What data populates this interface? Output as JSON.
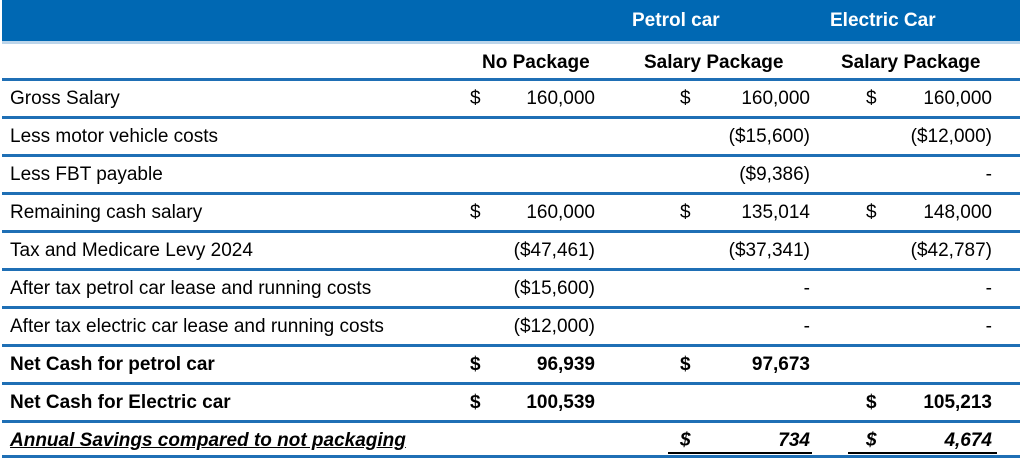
{
  "header": {
    "petrol": "Petrol car",
    "electric": "Electric Car"
  },
  "subheader": {
    "col1": "No Package",
    "col2": "Salary Package",
    "col3": "Salary Package"
  },
  "colors": {
    "header_bg": "#0068b3",
    "row_border": "#1f6fb5"
  },
  "rows": [
    {
      "label": "Gross Salary",
      "c1d": "$",
      "c1": "160,000",
      "c2d": "$",
      "c2": "160,000",
      "c3d": "$",
      "c3": "160,000",
      "style": ""
    },
    {
      "label": "Less motor vehicle costs",
      "c1d": "",
      "c1": "",
      "c2d": "",
      "c2": "($15,600)",
      "c3d": "",
      "c3": "($12,000)",
      "style": ""
    },
    {
      "label": "Less FBT payable",
      "c1d": "",
      "c1": "",
      "c2d": "",
      "c2": "($9,386)",
      "c3d": "",
      "c3": "-",
      "style": ""
    },
    {
      "label": "Remaining cash salary",
      "c1d": "$",
      "c1": "160,000",
      "c2d": "$",
      "c2": "135,014",
      "c3d": "$",
      "c3": "148,000",
      "style": ""
    },
    {
      "label": "Tax and Medicare Levy 2024",
      "c1d": "",
      "c1": "($47,461)",
      "c2d": "",
      "c2": "($37,341)",
      "c3d": "",
      "c3": "($42,787)",
      "style": ""
    },
    {
      "label": "After tax petrol car lease and running costs",
      "c1d": "",
      "c1": "($15,600)",
      "c2d": "",
      "c2": "-",
      "c3d": "",
      "c3": "-",
      "style": ""
    },
    {
      "label": "After tax electric car lease and running costs",
      "c1d": "",
      "c1": "($12,000)",
      "c2d": "",
      "c2": "-",
      "c3d": "",
      "c3": "-",
      "style": ""
    },
    {
      "label": "Net Cash for petrol car",
      "c1d": "$",
      "c1": "96,939",
      "c2d": "$",
      "c2": "97,673",
      "c3d": "",
      "c3": "",
      "style": "bold"
    },
    {
      "label": "Net Cash for Electric car",
      "c1d": "$",
      "c1": "100,539",
      "c2d": "",
      "c2": "",
      "c3d": "$",
      "c3": "105,213",
      "style": "bold"
    },
    {
      "label": "Annual Savings compared to not packaging",
      "c1d": "",
      "c1": "",
      "c2d": "$",
      "c2": "734",
      "c3d": "$",
      "c3": "4,674",
      "style": "bold ital ul"
    }
  ]
}
